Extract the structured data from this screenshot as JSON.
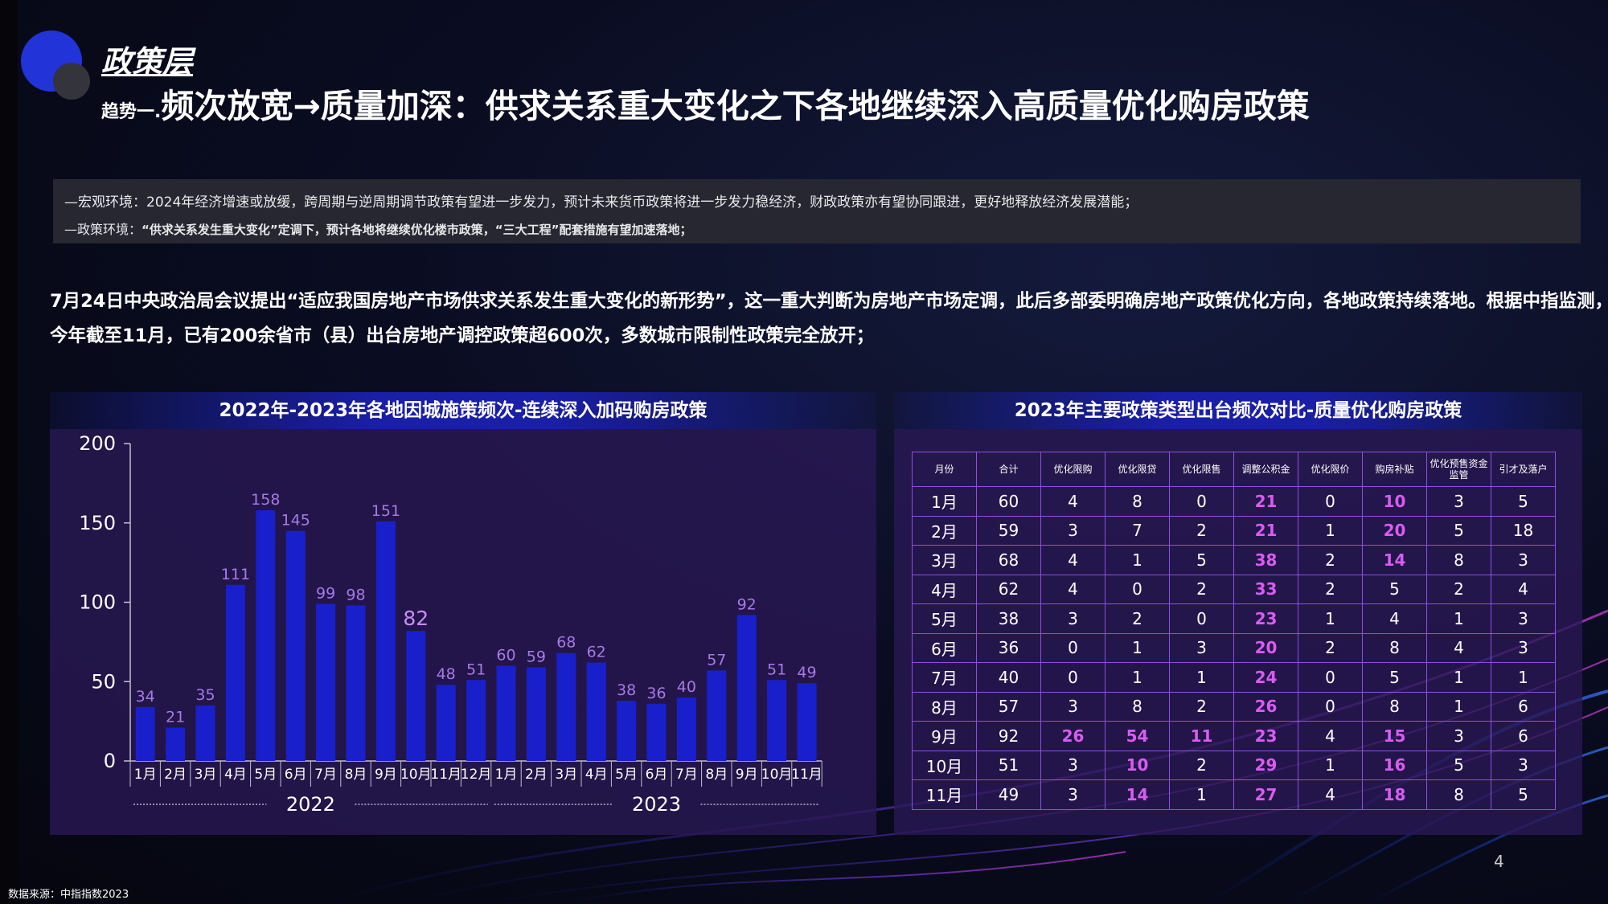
{
  "header": {
    "layer": "政策层",
    "prefix": "趋势一.",
    "title": "频次放宽→质量加深：供求关系重大变化之下各地继续深入高质量优化购房政策"
  },
  "env": {
    "line1": "—宏观环境：2024年经济增速或放缓，跨周期与逆周期调节政策有望进一步发力，预计未来货币政策将进一步发力稳经济，财政政策亦有望协同跟进，更好地释放经济发展潜能；",
    "line2_label": "—政策环境：",
    "line2_text": "“供求关系发生重大变化”定调下，预计各地将继续优化楼市政策，“三大工程”配套措施有望加速落地；"
  },
  "paragraph": {
    "line1": "7月24日中央政治局会议提出“适应我国房地产市场供求关系发生重大变化的新形势”，这一重大判断为房地产市场定调，此后多部委明确房地产政策优化方向，各地政策持续落地。根据中指监测，",
    "line2": "今年截至11月，已有200余省市（县）出台房地产调控政策超600次，多数城市限制性政策完全放开；"
  },
  "chart_header": "2022年-2023年各地因城施策频次-连续深入加码购房政策",
  "table_header": "2023年主要政策类型出台频次对比-质量优化购房政策",
  "chart_data": {
    "type": "bar",
    "categories": [
      "1月",
      "2月",
      "3月",
      "4月",
      "5月",
      "6月",
      "7月",
      "8月",
      "9月",
      "10月",
      "11月",
      "12月",
      "1月",
      "2月",
      "3月",
      "4月",
      "5月",
      "6月",
      "7月",
      "8月",
      "9月",
      "10月",
      "11月"
    ],
    "values": [
      34,
      21,
      35,
      111,
      158,
      145,
      99,
      98,
      151,
      82,
      48,
      51,
      60,
      59,
      68,
      62,
      38,
      36,
      40,
      57,
      92,
      51,
      49
    ],
    "groups": [
      {
        "label": "2022",
        "count": 12
      },
      {
        "label": "2023",
        "count": 11
      }
    ],
    "yticks": [
      0,
      50,
      100,
      150,
      200
    ],
    "ylim": [
      0,
      200
    ],
    "bar_color": "#1a1fcc",
    "label_color": "#a57ae6",
    "label_color_emphasis": "#c58ff5"
  },
  "table": {
    "headers": [
      "月份",
      "合计",
      "优化限购",
      "优化限贷",
      "优化限售",
      "调整公积金",
      "优化限价",
      "购房补贴",
      "优化预售资金监管",
      "引才及落户"
    ],
    "rows": [
      [
        "1月",
        "60",
        "4",
        "8",
        "0",
        "21",
        "0",
        "10",
        "3",
        "5"
      ],
      [
        "2月",
        "59",
        "3",
        "7",
        "2",
        "21",
        "1",
        "20",
        "5",
        "18"
      ],
      [
        "3月",
        "68",
        "4",
        "1",
        "5",
        "38",
        "2",
        "14",
        "8",
        "3"
      ],
      [
        "4月",
        "62",
        "4",
        "0",
        "2",
        "33",
        "2",
        "5",
        "2",
        "4"
      ],
      [
        "5月",
        "38",
        "3",
        "2",
        "0",
        "23",
        "1",
        "4",
        "1",
        "3"
      ],
      [
        "6月",
        "36",
        "0",
        "1",
        "3",
        "20",
        "2",
        "8",
        "4",
        "3"
      ],
      [
        "7月",
        "40",
        "0",
        "1",
        "1",
        "24",
        "0",
        "5",
        "1",
        "1"
      ],
      [
        "8月",
        "57",
        "3",
        "8",
        "2",
        "26",
        "0",
        "8",
        "1",
        "6"
      ],
      [
        "9月",
        "92",
        "26",
        "54",
        "11",
        "23",
        "4",
        "15",
        "3",
        "6"
      ],
      [
        "10月",
        "51",
        "3",
        "10",
        "2",
        "29",
        "1",
        "16",
        "5",
        "3"
      ],
      [
        "11月",
        "49",
        "3",
        "14",
        "1",
        "27",
        "4",
        "18",
        "8",
        "5"
      ]
    ],
    "highlights": [
      [
        0,
        5
      ],
      [
        0,
        7
      ],
      [
        1,
        5
      ],
      [
        1,
        7
      ],
      [
        2,
        5
      ],
      [
        2,
        7
      ],
      [
        3,
        5
      ],
      [
        4,
        5
      ],
      [
        5,
        5
      ],
      [
        6,
        5
      ],
      [
        7,
        5
      ],
      [
        8,
        2
      ],
      [
        8,
        3
      ],
      [
        8,
        4
      ],
      [
        8,
        5
      ],
      [
        8,
        7
      ],
      [
        9,
        3
      ],
      [
        9,
        5
      ],
      [
        9,
        7
      ],
      [
        10,
        3
      ],
      [
        10,
        5
      ],
      [
        10,
        7
      ]
    ],
    "highlight_color": "#d95cf0"
  },
  "footer": {
    "source": "数据来源：中指指数2023",
    "page": "4"
  }
}
